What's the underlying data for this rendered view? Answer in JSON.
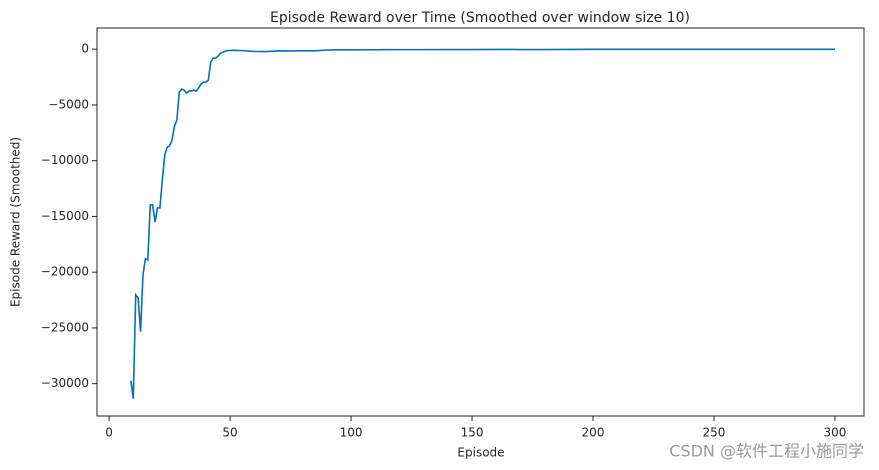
{
  "chart_data": {
    "type": "line",
    "title": "Episode Reward over Time (Smoothed over window size 10)",
    "xlabel": "Episode",
    "ylabel": "Episode Reward (Smoothed)",
    "watermark": "CSDN @软件工程小施同学",
    "series": [
      {
        "name": "Episode Reward (Smoothed)",
        "color": "#0173b2",
        "x": [
          9,
          10,
          11,
          12,
          13,
          14,
          15,
          16,
          17,
          18,
          19,
          20,
          21,
          22,
          23,
          24,
          25,
          26,
          27,
          28,
          29,
          30,
          31,
          32,
          33,
          34,
          35,
          36,
          37,
          38,
          39,
          40,
          41,
          42,
          43,
          44,
          45,
          46,
          47,
          48,
          49,
          50,
          52,
          55,
          60,
          65,
          70,
          75,
          80,
          85,
          90,
          95,
          100,
          110,
          120,
          130,
          140,
          150,
          160,
          170,
          180,
          190,
          200,
          210,
          220,
          230,
          240,
          250,
          260,
          270,
          280,
          290,
          300
        ],
        "values": [
          -29730,
          -31340,
          -22030,
          -22300,
          -25340,
          -20240,
          -18800,
          -18900,
          -13970,
          -13970,
          -15500,
          -14240,
          -14240,
          -11730,
          -9490,
          -8780,
          -8690,
          -8150,
          -6900,
          -6360,
          -3850,
          -3580,
          -3670,
          -3940,
          -3760,
          -3760,
          -3670,
          -3760,
          -3490,
          -3130,
          -2950,
          -2950,
          -2780,
          -1160,
          -810,
          -800,
          -630,
          -360,
          -270,
          -180,
          -130,
          -110,
          -100,
          -130,
          -200,
          -210,
          -150,
          -160,
          -140,
          -150,
          -80,
          -50,
          -60,
          -50,
          -40,
          -40,
          -30,
          -30,
          -20,
          -30,
          -30,
          -20,
          -10,
          -10,
          -10,
          -10,
          -10,
          -10,
          -10,
          -10,
          -10,
          -10,
          -10
        ]
      }
    ],
    "xlim": [
      -5,
      312
    ],
    "ylim": [
      -32900,
      1900
    ],
    "xticks": [
      0,
      50,
      100,
      150,
      200,
      250,
      300
    ],
    "yticks": [
      0,
      {
        "value": -5000,
        "label": "−5000"
      },
      {
        "value": -10000,
        "label": "−10000"
      },
      {
        "value": -15000,
        "label": "−15000"
      },
      {
        "value": -20000,
        "label": "−20000"
      },
      {
        "value": -25000,
        "label": "−25000"
      },
      {
        "value": -30000,
        "label": "−30000"
      }
    ],
    "grid": false
  }
}
